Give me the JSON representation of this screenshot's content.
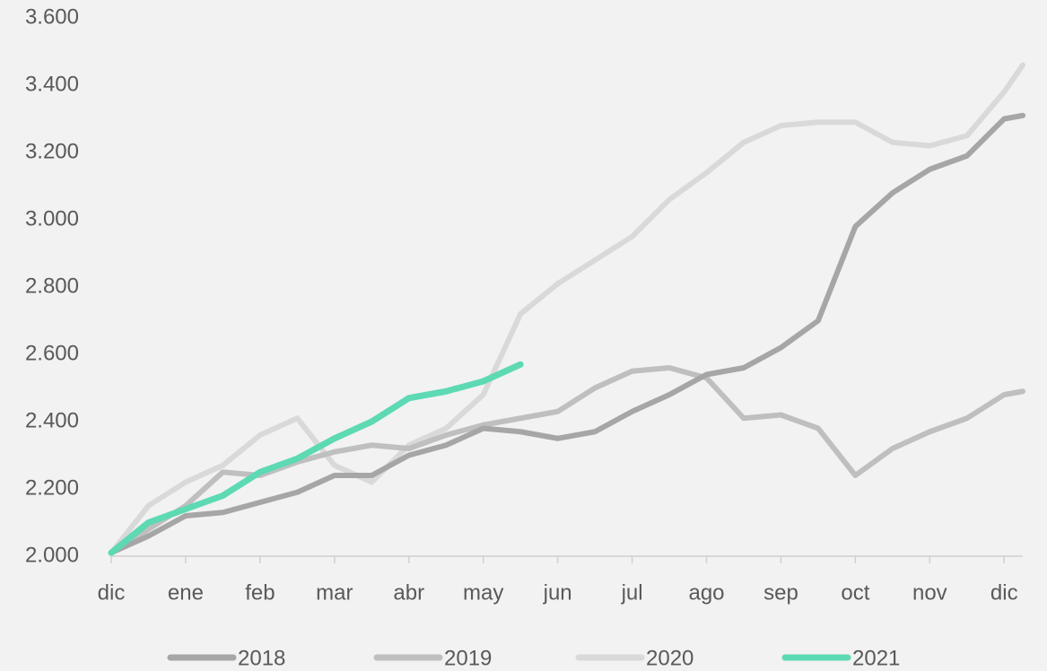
{
  "chart_data": {
    "type": "line",
    "x": [
      0,
      0.5,
      1,
      1.5,
      2,
      2.5,
      3,
      3.5,
      4,
      4.5,
      5,
      5.5,
      6,
      6.5,
      7,
      7.5,
      8,
      8.5,
      9,
      9.5,
      10,
      10.5,
      11,
      11.5,
      12,
      12.25
    ],
    "xlim": [
      0,
      12.25
    ],
    "xticks": [
      {
        "value": 0,
        "label": "dic"
      },
      {
        "value": 1,
        "label": "ene"
      },
      {
        "value": 2,
        "label": "feb"
      },
      {
        "value": 3,
        "label": "mar"
      },
      {
        "value": 4,
        "label": "abr"
      },
      {
        "value": 5,
        "label": "may"
      },
      {
        "value": 6,
        "label": "jun"
      },
      {
        "value": 7,
        "label": "jul"
      },
      {
        "value": 8,
        "label": "ago"
      },
      {
        "value": 9,
        "label": "sep"
      },
      {
        "value": 10,
        "label": "oct"
      },
      {
        "value": 11,
        "label": "nov"
      },
      {
        "value": 12,
        "label": "dic"
      }
    ],
    "ylim": [
      2000,
      3600
    ],
    "yticks": [
      {
        "value": 2000,
        "label": "2.000"
      },
      {
        "value": 2200,
        "label": "2.200"
      },
      {
        "value": 2400,
        "label": "2.400"
      },
      {
        "value": 2600,
        "label": "2.600"
      },
      {
        "value": 2800,
        "label": "2.800"
      },
      {
        "value": 3000,
        "label": "3.000"
      },
      {
        "value": 3200,
        "label": "3.200"
      },
      {
        "value": 3400,
        "label": "3.400"
      },
      {
        "value": 3600,
        "label": "3.600"
      }
    ],
    "series": [
      {
        "name": "2018",
        "color": "#a6a6a6",
        "values": [
          2010,
          2060,
          2120,
          2130,
          2160,
          2190,
          2240,
          2240,
          2300,
          2330,
          2380,
          2370,
          2350,
          2370,
          2430,
          2480,
          2540,
          2560,
          2620,
          2700,
          2980,
          3080,
          3150,
          3190,
          3300,
          3310
        ]
      },
      {
        "name": "2019",
        "color": "#bfbfbf",
        "values": [
          2010,
          2080,
          2150,
          2250,
          2240,
          2280,
          2310,
          2330,
          2320,
          2360,
          2390,
          2410,
          2430,
          2500,
          2550,
          2560,
          2530,
          2410,
          2420,
          2380,
          2240,
          2320,
          2370,
          2410,
          2480,
          2490
        ]
      },
      {
        "name": "2020",
        "color": "#d9d9d9",
        "values": [
          2010,
          2150,
          2220,
          2270,
          2360,
          2410,
          2270,
          2220,
          2330,
          2380,
          2480,
          2720,
          2810,
          2880,
          2950,
          3060,
          3140,
          3230,
          3280,
          3290,
          3290,
          3230,
          3220,
          3250,
          3380,
          3460
        ]
      },
      {
        "name": "2021",
        "color": "#5dd9b4",
        "values": [
          2010,
          2100,
          2140,
          2180,
          2250,
          2290,
          2350,
          2400,
          2470,
          2490,
          2520,
          2570,
          null,
          null,
          null,
          null,
          null,
          null,
          null,
          null,
          null,
          null,
          null,
          null,
          null,
          null
        ]
      }
    ]
  }
}
